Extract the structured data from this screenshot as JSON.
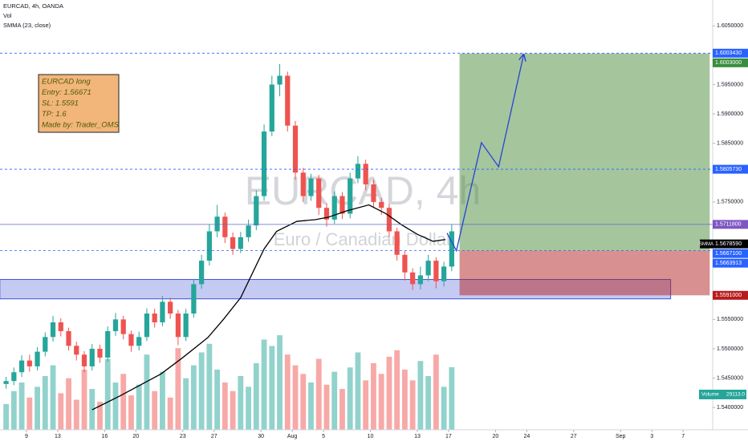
{
  "header": {
    "symbol": "EURCAD, 4h, OANDA",
    "volume": "Vol",
    "indicator": "SMMA (23, close)"
  },
  "watermark": {
    "title": "EURCAD, 4h",
    "subtitle": "Euro / Canadian Dollar"
  },
  "note": {
    "lines": [
      "EURCAD long",
      "Entry: 1.56671",
      "SL: 1.5591",
      "TP: 1.6",
      "Made by: Trader_OMS"
    ]
  },
  "chart_data": {
    "type": "candlestick",
    "xlim": [
      -1.69,
      43.89
    ],
    "ylim": [
      1.5362,
      1.6094
    ],
    "xticks": [
      {
        "value": 0,
        "label": "9"
      },
      {
        "value": 2,
        "label": "13"
      },
      {
        "value": 5,
        "label": "16"
      },
      {
        "value": 7,
        "label": "20"
      },
      {
        "value": 10,
        "label": "23"
      },
      {
        "value": 12,
        "label": "27"
      },
      {
        "value": 15,
        "label": "30"
      },
      {
        "value": 17,
        "label": "Aug"
      },
      {
        "value": 19,
        "label": "5"
      },
      {
        "value": 22,
        "label": "10"
      },
      {
        "value": 25,
        "label": "13"
      },
      {
        "value": 27,
        "label": "17"
      },
      {
        "value": 30,
        "label": "20"
      },
      {
        "value": 32,
        "label": "24"
      },
      {
        "value": 35,
        "label": "27"
      },
      {
        "value": 38,
        "label": "Sep"
      },
      {
        "value": 40,
        "label": "3"
      },
      {
        "value": 42,
        "label": "7"
      }
    ],
    "yticks": [
      {
        "value": 1.605,
        "label": "1.6050000"
      },
      {
        "value": 1.595,
        "label": "1.5950000"
      },
      {
        "value": 1.59,
        "label": "1.5900000"
      },
      {
        "value": 1.585,
        "label": "1.5850000"
      },
      {
        "value": 1.575,
        "label": "1.5750000"
      },
      {
        "value": 1.555,
        "label": "1.5550000"
      },
      {
        "value": 1.55,
        "label": "1.5500000"
      },
      {
        "value": 1.545,
        "label": "1.5450000"
      },
      {
        "value": 1.54,
        "label": "1.5400000"
      }
    ],
    "up_color": "#26a69a",
    "down_color": "#ef5350",
    "candles": {
      "x": [
        -1.3,
        -0.8,
        -0.3,
        0.2,
        0.7,
        1.2,
        1.7,
        2.2,
        2.7,
        3.2,
        3.7,
        4.2,
        4.7,
        5.2,
        5.7,
        6.2,
        6.7,
        7.2,
        7.7,
        8.2,
        8.7,
        9.2,
        9.7,
        10.2,
        10.7,
        11.2,
        11.7,
        12.2,
        12.7,
        13.2,
        13.7,
        14.2,
        14.7,
        15.2,
        15.7,
        16.2,
        16.7,
        17.2,
        17.7,
        18.2,
        18.7,
        19.2,
        19.7,
        20.2,
        20.7,
        21.2,
        21.7,
        22.2,
        22.7,
        23.2,
        23.7,
        24.2,
        24.7,
        25.2,
        25.7,
        26.2,
        26.7,
        27.2
      ],
      "open": [
        1.544,
        1.5445,
        1.546,
        1.548,
        1.547,
        1.5495,
        1.552,
        1.5545,
        1.553,
        1.5505,
        1.549,
        1.547,
        1.55,
        1.5485,
        1.553,
        1.555,
        1.5525,
        1.5505,
        1.552,
        1.556,
        1.5545,
        1.558,
        1.556,
        1.552,
        1.556,
        1.561,
        1.565,
        1.57,
        1.5725,
        1.569,
        1.567,
        1.569,
        1.571,
        1.576,
        1.587,
        1.595,
        1.5965,
        1.588,
        1.58,
        1.576,
        1.579,
        1.574,
        1.572,
        1.576,
        1.573,
        1.579,
        1.5815,
        1.578,
        1.575,
        1.574,
        1.57,
        1.566,
        1.563,
        1.561,
        1.5625,
        1.565,
        1.5615,
        1.564
      ],
      "high": [
        1.5452,
        1.5468,
        1.5489,
        1.549,
        1.5503,
        1.5528,
        1.5556,
        1.5552,
        1.5536,
        1.5512,
        1.5496,
        1.5508,
        1.5507,
        1.5538,
        1.5561,
        1.5556,
        1.5531,
        1.5529,
        1.5569,
        1.5568,
        1.559,
        1.5587,
        1.5566,
        1.5568,
        1.5619,
        1.566,
        1.5712,
        1.5745,
        1.5732,
        1.5698,
        1.5699,
        1.572,
        1.577,
        1.5882,
        1.5965,
        1.5985,
        1.5972,
        1.5888,
        1.5808,
        1.5798,
        1.5796,
        1.5748,
        1.5768,
        1.5767,
        1.58,
        1.5828,
        1.5822,
        1.5788,
        1.5757,
        1.5746,
        1.5706,
        1.5667,
        1.5637,
        1.564,
        1.566,
        1.5656,
        1.5648,
        1.5712
      ],
      "low": [
        1.5432,
        1.5438,
        1.5452,
        1.5461,
        1.5463,
        1.5487,
        1.5512,
        1.5521,
        1.5497,
        1.548,
        1.546,
        1.5463,
        1.5476,
        1.5478,
        1.5522,
        1.5516,
        1.5495,
        1.5497,
        1.5513,
        1.5536,
        1.5538,
        1.5551,
        1.5506,
        1.5513,
        1.5553,
        1.5602,
        1.5642,
        1.569,
        1.568,
        1.566,
        1.5663,
        1.5682,
        1.5702,
        1.5752,
        1.5862,
        1.593,
        1.587,
        1.5788,
        1.575,
        1.5752,
        1.5728,
        1.5708,
        1.5713,
        1.5721,
        1.5722,
        1.5782,
        1.577,
        1.574,
        1.5728,
        1.569,
        1.565,
        1.5616,
        1.56,
        1.5601,
        1.5615,
        1.5603,
        1.5606,
        1.5632
      ],
      "close": [
        1.5445,
        1.546,
        1.548,
        1.547,
        1.5495,
        1.552,
        1.5545,
        1.553,
        1.5505,
        1.549,
        1.547,
        1.55,
        1.5485,
        1.553,
        1.555,
        1.5525,
        1.5505,
        1.552,
        1.556,
        1.5545,
        1.558,
        1.556,
        1.552,
        1.556,
        1.561,
        1.565,
        1.57,
        1.5725,
        1.569,
        1.567,
        1.569,
        1.571,
        1.576,
        1.587,
        1.595,
        1.5965,
        1.588,
        1.58,
        1.576,
        1.579,
        1.574,
        1.572,
        1.576,
        1.573,
        1.579,
        1.5815,
        1.578,
        1.575,
        1.574,
        1.57,
        1.566,
        1.563,
        1.561,
        1.5625,
        1.565,
        1.5615,
        1.564,
        1.57
      ],
      "volume": [
        12000,
        18000,
        22000,
        15000,
        20000,
        25000,
        30000,
        17000,
        24000,
        14000,
        28000,
        19000,
        13000,
        33000,
        22000,
        26000,
        16000,
        21000,
        35000,
        18000,
        27000,
        15000,
        38000,
        24000,
        30000,
        36000,
        40000,
        28000,
        22000,
        18000,
        25000,
        20000,
        31000,
        42000,
        39000,
        44000,
        35000,
        30000,
        26000,
        22000,
        33000,
        21000,
        27000,
        19000,
        29000,
        36000,
        23000,
        31000,
        26000,
        34000,
        37000,
        28000,
        23000,
        32000,
        25000,
        35000,
        20000,
        29113
      ]
    },
    "volume_ylim": [
      0,
      70000
    ],
    "volume_tag": {
      "name": "Volume",
      "label": "29113.0"
    },
    "smma": {
      "name": "SMMA",
      "color": "#000000",
      "x": [
        4.2,
        6,
        8.6,
        10,
        11.6,
        12.6,
        13.7,
        15.2,
        16,
        17.3,
        18.5,
        19.3,
        20.5,
        21.9,
        23,
        24,
        25,
        26,
        26.8
      ],
      "values": [
        1.5396,
        1.542,
        1.5457,
        1.5485,
        1.5519,
        1.555,
        1.5587,
        1.567,
        1.57,
        1.5717,
        1.572,
        1.5724,
        1.5735,
        1.5745,
        1.573,
        1.5711,
        1.5695,
        1.5683,
        1.5686
      ]
    },
    "hlines": [
      {
        "value": 1.600343,
        "style": "dashed",
        "color": "#2962ff"
      },
      {
        "value": 1.580573,
        "style": "dashed",
        "color": "#2962ff"
      },
      {
        "value": 1.57118,
        "style": "solid",
        "color": "#5c6bc0"
      },
      {
        "value": 1.56671,
        "style": "dashed",
        "color": "#2962ff"
      }
    ],
    "zone": {
      "x": [
        -1.7,
        41.2
      ],
      "y": [
        1.5585,
        1.5618
      ],
      "color": "#3f51d8"
    },
    "position": {
      "x": [
        27.7,
        43.7
      ],
      "target": 1.6003,
      "entry": 1.56671,
      "stop": 1.5591
    },
    "arrow": {
      "color": "#2443d6",
      "x": [
        26.9,
        27.5,
        29.1,
        30.2,
        31.8
      ],
      "y": [
        1.5697,
        1.5667,
        1.5851,
        1.581,
        1.6001
      ]
    },
    "tags": [
      {
        "value": 1.600343,
        "label": "1.6003430",
        "color": "#2962ff"
      },
      {
        "value": 1.6003,
        "label": "1.6003000",
        "color": "#388e3c"
      },
      {
        "value": 1.580573,
        "label": "1.5805730",
        "color": "#2962ff"
      },
      {
        "value": 1.57118,
        "label": "1.5711800",
        "color": "#7e57c2"
      },
      {
        "value": 1.567859,
        "label": "1.5678590",
        "color": "#000000"
      },
      {
        "value": 1.56671,
        "label": "1.5667100",
        "color": "#2962ff"
      },
      {
        "value": 1.5663913,
        "label": "1.5663913",
        "color": "#2962ff"
      },
      {
        "value": 1.5591,
        "label": "1.5591000",
        "color": "#b71c1c"
      }
    ]
  }
}
